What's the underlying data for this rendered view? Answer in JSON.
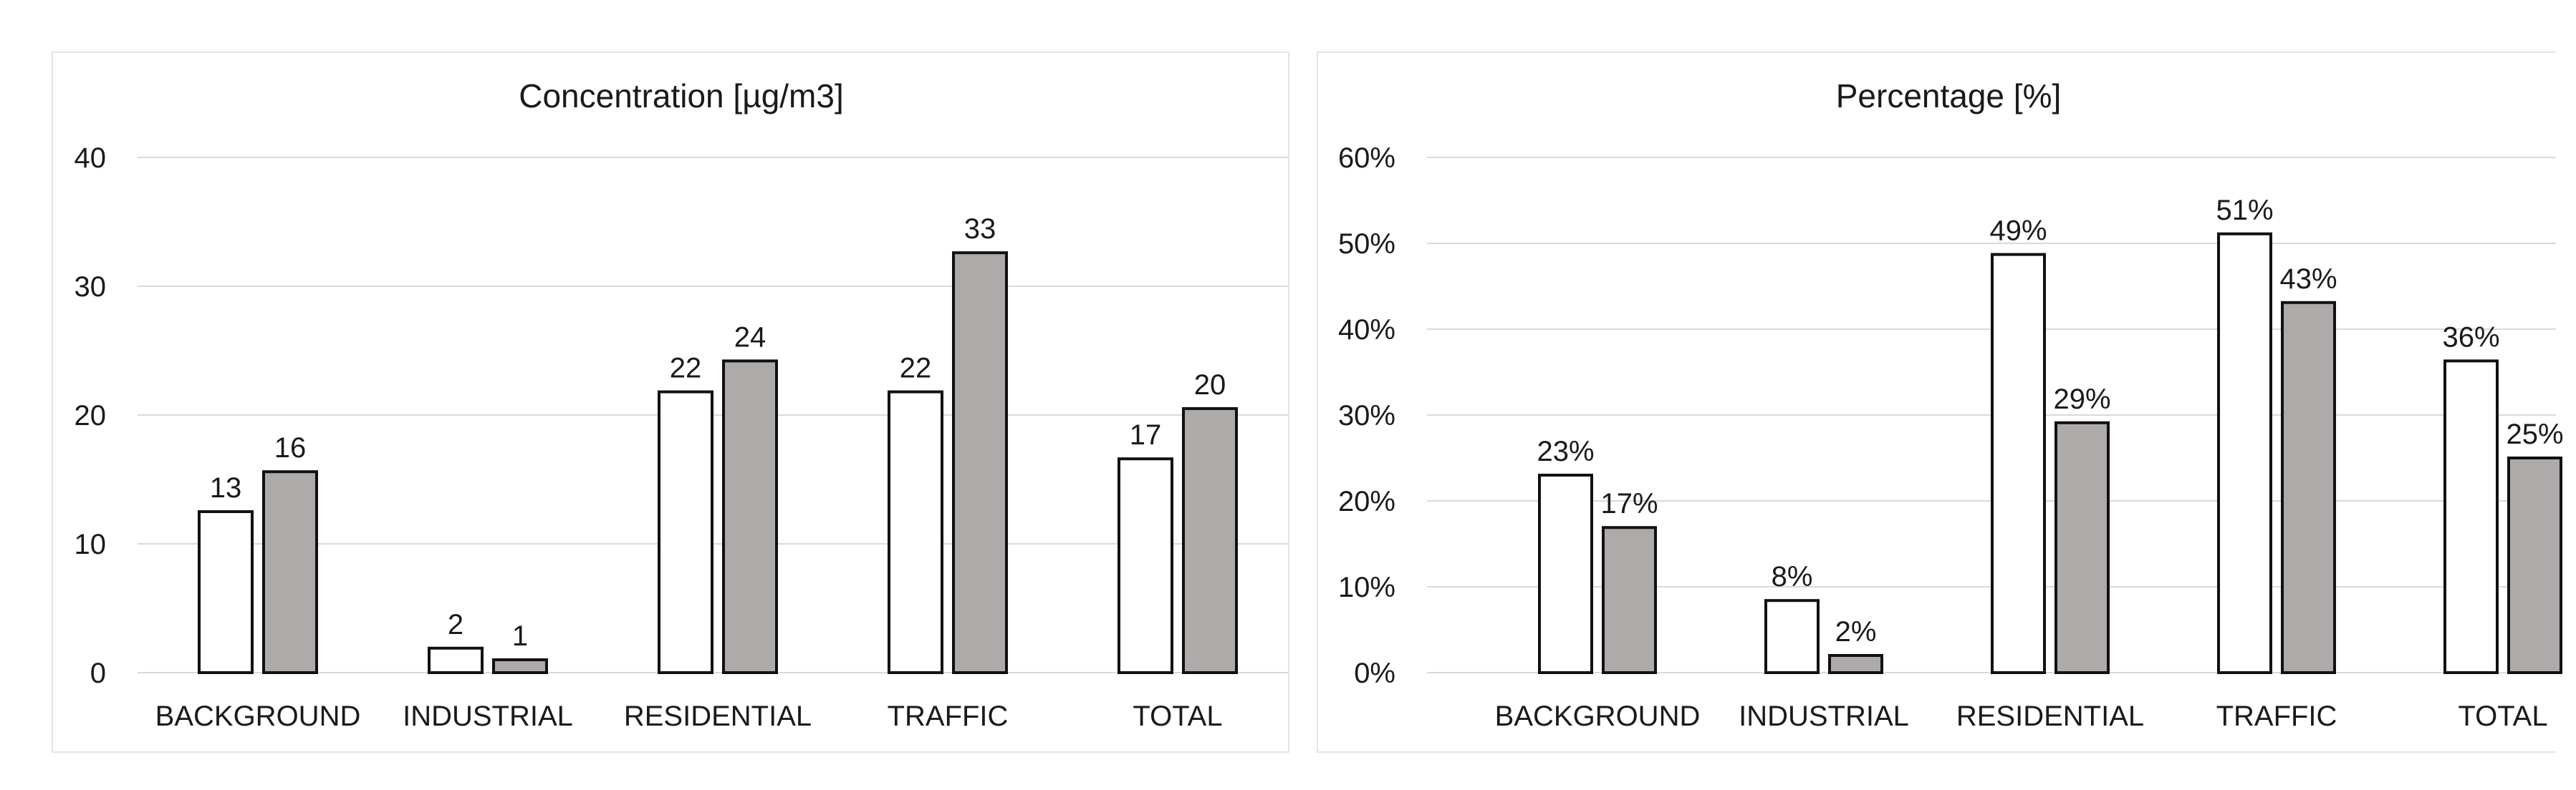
{
  "charts": [
    {
      "type": "bar",
      "title": "Concentration [µg/m3]",
      "categories": [
        "BACKGROUND",
        "INDUSTRIAL",
        "RESIDENTIAL",
        "TRAFFIC",
        "TOTAL"
      ],
      "series": [
        {
          "values": [
            12.5,
            1.9,
            21.8,
            21.8,
            16.6
          ],
          "labels": [
            "13",
            "2",
            "22",
            "22",
            "17"
          ]
        },
        {
          "values": [
            15.6,
            1.0,
            24.2,
            32.6,
            20.5
          ],
          "labels": [
            "16",
            "1",
            "24",
            "33",
            "20"
          ]
        }
      ],
      "yticks": [
        0,
        10,
        20,
        30,
        40
      ],
      "yticklabels": [
        "0",
        "10",
        "20",
        "30",
        "40"
      ],
      "ylim": [
        0,
        40
      ]
    },
    {
      "type": "bar",
      "title": "Percentage [%]",
      "categories": [
        "BACKGROUND",
        "INDUSTRIAL",
        "RESIDENTIAL",
        "TRAFFIC",
        "TOTAL"
      ],
      "series": [
        {
          "values": [
            23,
            8.4,
            48.7,
            51.1,
            36.3
          ],
          "labels": [
            "23%",
            "8%",
            "49%",
            "51%",
            "36%"
          ]
        },
        {
          "values": [
            16.9,
            2.0,
            29.1,
            43.1,
            25.0
          ],
          "labels": [
            "17%",
            "2%",
            "29%",
            "43%",
            "25%"
          ]
        }
      ],
      "yticks": [
        0,
        10,
        20,
        30,
        40,
        50,
        60
      ],
      "yticklabels": [
        "0%",
        "10%",
        "20%",
        "30%",
        "40%",
        "50%",
        "60%"
      ],
      "ylim": [
        0,
        60
      ]
    }
  ],
  "chart_data": [
    {
      "type": "bar",
      "title": "Concentration [µg/m3]",
      "categories": [
        "BACKGROUND",
        "INDUSTRIAL",
        "RESIDENTIAL",
        "TRAFFIC",
        "TOTAL"
      ],
      "series": [
        {
          "values": [
            12.5,
            1.9,
            21.8,
            21.8,
            16.6
          ]
        },
        {
          "values": [
            15.6,
            1.0,
            24.2,
            32.6,
            20.5
          ]
        }
      ],
      "ylim": [
        0,
        40
      ],
      "grid": true
    },
    {
      "type": "bar",
      "title": "Percentage [%]",
      "categories": [
        "BACKGROUND",
        "INDUSTRIAL",
        "RESIDENTIAL",
        "TRAFFIC",
        "TOTAL"
      ],
      "series": [
        {
          "values": [
            23,
            8.4,
            48.7,
            51.1,
            36.3
          ]
        },
        {
          "values": [
            16.9,
            2.0,
            29.1,
            43.1,
            25.0
          ]
        }
      ],
      "ylim": [
        0,
        60
      ],
      "grid": true
    }
  ],
  "colors": {
    "series_1": "#ffffff",
    "series_2": "#aeaaaa",
    "bar_stroke": "#111111",
    "gridline": "#d9d9d9"
  }
}
